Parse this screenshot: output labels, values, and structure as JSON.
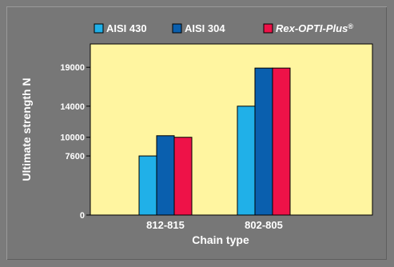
{
  "chart_data": {
    "type": "bar",
    "categories": [
      "812-815",
      "802-805"
    ],
    "series": [
      {
        "name": "AISI 430",
        "values": [
          7600,
          14000
        ],
        "color": "#20b0e8"
      },
      {
        "name": "AISI 304",
        "values": [
          10200,
          18900
        ],
        "color": "#0a5fae"
      },
      {
        "name": "Rex-OPTI-Plus®",
        "values": [
          10000,
          18900
        ],
        "color": "#ee1248",
        "italic": true
      }
    ],
    "xlabel": "Chain type",
    "ylabel": "Ultimate strength N",
    "yticks": [
      0,
      7600,
      10000,
      14000,
      19000
    ],
    "ylim": [
      0,
      22000
    ],
    "grid": false,
    "legend_position": "top",
    "plot_background": "#fff5a0",
    "frame_background": "#7b7b7b"
  }
}
